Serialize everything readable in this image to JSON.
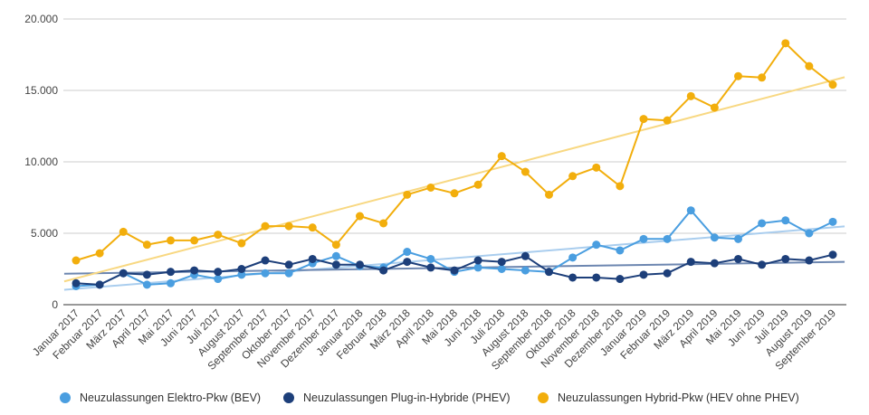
{
  "chart_data": {
    "type": "line",
    "title": "",
    "xlabel": "",
    "ylabel": "",
    "ylim": [
      0,
      20000
    ],
    "yticks": [
      "0",
      "5.000",
      "10.000",
      "15.000",
      "20.000"
    ],
    "ytick_values": [
      0,
      5000,
      10000,
      15000,
      20000
    ],
    "grid": true,
    "legend_position": "bottom",
    "categories": [
      "Januar 2017",
      "Februar 2017",
      "März 2017",
      "April 2017",
      "Mai 2017",
      "Juni 2017",
      "Juli 2017",
      "August 2017",
      "September 2017",
      "Oktober 2017",
      "November 2017",
      "Dezember 2017",
      "Januar 2018",
      "Februar 2018",
      "März 2018",
      "April 2018",
      "Mai 2018",
      "Juni 2018",
      "Juli 2018",
      "August 2018",
      "September 2018",
      "Oktober 2018",
      "November 2018",
      "Dezember 2018",
      "Januar 2019",
      "Februar 2019",
      "März 2019",
      "April 2019",
      "Mai 2019",
      "Juni 2019",
      "Juli 2019",
      "August 2019",
      "September 2019"
    ],
    "series": [
      {
        "name": "Neuzulassungen Elektro-Pkw (BEV)",
        "color": "#4a9ee0",
        "trend_color": "#a9cdee",
        "values": [
          1300,
          1400,
          2200,
          1400,
          1500,
          2100,
          1800,
          2100,
          2200,
          2200,
          2900,
          3400,
          2700,
          2600,
          3700,
          3200,
          2300,
          2600,
          2500,
          2400,
          2300,
          3300,
          4200,
          3800,
          4600,
          4600,
          6600,
          4700,
          4600,
          5700,
          5900,
          5000,
          5800
        ]
      },
      {
        "name": "Neuzulassungen Plug-in-Hybride (PHEV)",
        "color": "#1d3f7a",
        "trend_color": "#6c86b0",
        "values": [
          1500,
          1400,
          2200,
          2100,
          2300,
          2400,
          2300,
          2500,
          3100,
          2800,
          3200,
          2800,
          2800,
          2400,
          3000,
          2600,
          2400,
          3100,
          3000,
          3400,
          2300,
          1900,
          1900,
          1800,
          2100,
          2200,
          3000,
          2900,
          3200,
          2800,
          3200,
          3100,
          3500
        ]
      },
      {
        "name": "Neuzulassungen Hybrid-Pkw (HEV ohne PHEV)",
        "color": "#f2ae0c",
        "trend_color": "#f8d882",
        "values": [
          3100,
          3600,
          5100,
          4200,
          4500,
          4500,
          4900,
          4300,
          5500,
          5500,
          5400,
          4200,
          6200,
          5700,
          7700,
          8200,
          7800,
          8400,
          10400,
          9300,
          7700,
          9000,
          9600,
          8300,
          13000,
          12900,
          14600,
          13800,
          16000,
          15900,
          18300,
          16700,
          15400
        ]
      }
    ]
  }
}
